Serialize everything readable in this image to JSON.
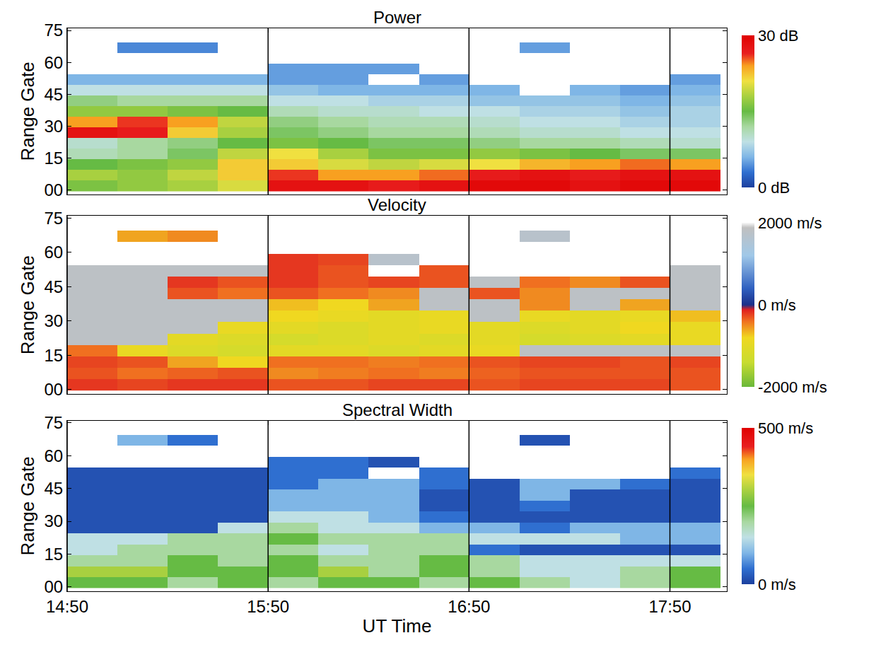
{
  "chart_data": [
    {
      "type": "heatmap",
      "title": "Power",
      "ylabel": "Range Gate",
      "grid": "x",
      "tick_labels": "y",
      "x": [
        897.5,
        912.5,
        927.5,
        942.5,
        957.5,
        972.5,
        987.5,
        1002.5,
        1017.5,
        1032.5,
        1047.5,
        1062.5,
        1077.5
      ],
      "y": [
        2,
        7,
        12,
        17,
        22,
        27,
        32,
        37,
        42,
        47,
        52,
        57,
        62,
        67,
        72
      ],
      "xlim": [
        890,
        1087
      ],
      "xticks": [
        {
          "value": 890,
          "label": "14:50"
        },
        {
          "value": 950,
          "label": "15:50"
        },
        {
          "value": 1010,
          "label": "16:50"
        },
        {
          "value": 1070,
          "label": "17:50"
        }
      ],
      "ylim": [
        -2,
        76
      ],
      "yticks": [
        {
          "value": 0,
          "label": "00"
        },
        15,
        30,
        45,
        60,
        75
      ],
      "zlim": [
        0,
        30
      ],
      "zticks": [
        {
          "value": 0,
          "label": "0 dB"
        },
        {
          "value": 30,
          "label": "30 dB"
        }
      ],
      "z": [
        [
          16,
          17,
          18,
          20,
          28,
          28,
          27,
          28,
          29,
          29,
          28,
          29,
          29
        ],
        [
          18,
          17,
          19,
          22,
          26,
          24,
          24,
          25,
          27,
          28,
          27,
          28,
          28
        ],
        [
          15,
          16,
          17,
          22,
          22,
          20,
          19,
          20,
          21,
          23,
          24,
          25,
          24
        ],
        [
          11,
          12,
          14,
          19,
          21,
          18,
          16,
          16,
          17,
          16,
          15,
          14,
          14
        ],
        [
          10,
          12,
          13,
          15,
          16,
          15,
          14,
          14,
          13,
          12,
          12,
          11,
          10
        ],
        [
          28,
          27,
          22,
          18,
          14,
          13,
          12,
          12,
          11,
          10,
          10,
          9,
          9
        ],
        [
          24,
          26,
          24,
          19,
          13,
          12,
          11,
          11,
          10,
          9,
          9,
          8,
          8
        ],
        [
          17,
          17,
          16,
          15,
          11,
          10,
          10,
          9,
          9,
          8,
          8,
          7,
          8
        ],
        [
          13,
          12,
          12,
          12,
          9,
          9,
          8,
          8,
          7,
          7,
          7,
          6,
          7
        ],
        [
          9,
          9,
          9,
          9,
          7,
          6,
          6,
          6,
          6,
          null,
          6,
          5,
          6
        ],
        [
          6,
          6,
          6,
          6,
          5,
          5,
          null,
          5,
          null,
          null,
          null,
          null,
          5
        ],
        [
          null,
          null,
          null,
          null,
          5,
          5,
          5,
          null,
          null,
          null,
          null,
          null,
          null
        ],
        [
          null,
          null,
          null,
          null,
          null,
          null,
          null,
          null,
          null,
          null,
          null,
          null,
          null
        ],
        [
          null,
          4,
          4,
          null,
          null,
          null,
          null,
          null,
          null,
          5,
          null,
          null,
          null
        ],
        [
          null,
          null,
          null,
          null,
          null,
          null,
          null,
          null,
          null,
          null,
          null,
          null,
          null
        ]
      ]
    },
    {
      "type": "heatmap",
      "title": "Velocity",
      "ylabel": "Range Gate",
      "grid": "x",
      "tick_labels": "y",
      "x": [
        897.5,
        912.5,
        927.5,
        942.5,
        957.5,
        972.5,
        987.5,
        1002.5,
        1017.5,
        1032.5,
        1047.5,
        1062.5,
        1077.5
      ],
      "y": [
        2,
        7,
        12,
        17,
        22,
        27,
        32,
        37,
        42,
        47,
        52,
        57,
        62,
        67,
        72
      ],
      "xlim": [
        890,
        1087
      ],
      "xticks": [
        {
          "value": 890,
          "label": "14:50"
        },
        {
          "value": 950,
          "label": "15:50"
        },
        {
          "value": 1010,
          "label": "16:50"
        },
        {
          "value": 1070,
          "label": "17:50"
        }
      ],
      "ylim": [
        -2,
        76
      ],
      "yticks": [
        {
          "value": 0,
          "label": "00"
        },
        15,
        30,
        45,
        60,
        75
      ],
      "zlim": [
        -2000,
        2000
      ],
      "zticks": [
        {
          "value": -2000,
          "label": "-2000 m/s"
        },
        {
          "value": 0,
          "label": "0 m/s"
        },
        {
          "value": 2000,
          "label": "2000 m/s"
        }
      ],
      "z": [
        [
          -200,
          -250,
          -200,
          -200,
          -300,
          -300,
          -250,
          -250,
          -300,
          -250,
          -250,
          -250,
          -300
        ],
        [
          -300,
          -400,
          -350,
          -300,
          -500,
          -450,
          -400,
          -450,
          -350,
          -300,
          -300,
          -300,
          -300
        ],
        [
          -250,
          -300,
          -600,
          -800,
          -400,
          -400,
          -450,
          -400,
          -300,
          -250,
          -250,
          -300,
          -250
        ],
        [
          -400,
          -900,
          -1100,
          -1200,
          -1000,
          -1000,
          -1100,
          -1000,
          -900,
          1800,
          1800,
          1800,
          1800
        ],
        [
          1800,
          1800,
          -1000,
          -1100,
          -1200,
          -1100,
          -1000,
          -1100,
          -1000,
          -1200,
          -1100,
          -1000,
          -900
        ],
        [
          1800,
          1800,
          1800,
          -900,
          -1000,
          -1100,
          -1000,
          -900,
          -1000,
          -1100,
          -1000,
          -800,
          -900
        ],
        [
          1800,
          1800,
          1800,
          1800,
          -800,
          -900,
          -1000,
          -900,
          1800,
          -900,
          -1000,
          -900,
          -700
        ],
        [
          1800,
          1800,
          1800,
          1800,
          -700,
          -800,
          -600,
          1800,
          1800,
          -500,
          1800,
          -600,
          1800
        ],
        [
          1800,
          1800,
          -300,
          -400,
          -300,
          -400,
          -500,
          1800,
          -300,
          -500,
          1800,
          1800,
          1800
        ],
        [
          1800,
          1800,
          -200,
          -300,
          -200,
          -300,
          -250,
          -300,
          1800,
          -400,
          -500,
          -300,
          1800
        ],
        [
          1800,
          1800,
          1800,
          1800,
          -200,
          -300,
          null,
          -300,
          null,
          null,
          null,
          null,
          1800
        ],
        [
          null,
          null,
          null,
          null,
          -200,
          -250,
          1700,
          null,
          null,
          null,
          null,
          null,
          null
        ],
        [
          null,
          null,
          null,
          null,
          null,
          null,
          null,
          null,
          null,
          null,
          null,
          null,
          null
        ],
        [
          null,
          -600,
          -500,
          null,
          null,
          null,
          null,
          null,
          null,
          1700,
          null,
          null,
          null
        ],
        [
          null,
          null,
          null,
          null,
          null,
          null,
          null,
          null,
          null,
          null,
          null,
          null,
          null
        ]
      ]
    },
    {
      "type": "heatmap",
      "title": "Spectral Width",
      "ylabel": "Range Gate",
      "xlabel": "UT Time",
      "grid": "x",
      "x": [
        897.5,
        912.5,
        927.5,
        942.5,
        957.5,
        972.5,
        987.5,
        1002.5,
        1017.5,
        1032.5,
        1047.5,
        1062.5,
        1077.5
      ],
      "y": [
        2,
        7,
        12,
        17,
        22,
        27,
        32,
        37,
        42,
        47,
        52,
        57,
        62,
        67,
        72
      ],
      "xlim": [
        890,
        1087
      ],
      "xticks": [
        {
          "value": 890,
          "label": "14:50"
        },
        {
          "value": 950,
          "label": "15:50"
        },
        {
          "value": 1010,
          "label": "16:50"
        },
        {
          "value": 1070,
          "label": "17:50"
        }
      ],
      "ylim": [
        -2,
        76
      ],
      "yticks": [
        {
          "value": 0,
          "label": "00"
        },
        15,
        30,
        45,
        60,
        75
      ],
      "zlim": [
        0,
        500
      ],
      "zticks": [
        {
          "value": 0,
          "label": "0 m/s"
        },
        {
          "value": 500,
          "label": "500 m/s"
        }
      ],
      "z": [
        [
          250,
          250,
          200,
          250,
          200,
          250,
          250,
          200,
          250,
          200,
          150,
          200,
          250
        ],
        [
          300,
          300,
          250,
          250,
          250,
          300,
          200,
          250,
          200,
          150,
          150,
          200,
          250
        ],
        [
          200,
          200,
          250,
          200,
          250,
          200,
          200,
          250,
          200,
          150,
          150,
          150,
          150
        ],
        [
          150,
          200,
          200,
          200,
          200,
          150,
          200,
          200,
          50,
          20,
          20,
          20,
          20
        ],
        [
          150,
          150,
          200,
          200,
          250,
          200,
          200,
          200,
          150,
          150,
          150,
          100,
          100
        ],
        [
          20,
          20,
          20,
          150,
          200,
          150,
          150,
          100,
          100,
          50,
          100,
          100,
          100
        ],
        [
          20,
          20,
          20,
          20,
          150,
          150,
          100,
          50,
          20,
          20,
          20,
          20,
          20
        ],
        [
          20,
          20,
          20,
          20,
          100,
          100,
          100,
          20,
          20,
          50,
          20,
          20,
          20
        ],
        [
          20,
          20,
          20,
          20,
          100,
          100,
          100,
          20,
          20,
          100,
          20,
          20,
          20
        ],
        [
          20,
          20,
          20,
          20,
          50,
          100,
          100,
          50,
          20,
          100,
          100,
          50,
          20
        ],
        [
          20,
          20,
          20,
          20,
          50,
          50,
          null,
          50,
          null,
          null,
          null,
          null,
          50
        ],
        [
          null,
          null,
          null,
          null,
          50,
          50,
          20,
          null,
          null,
          null,
          null,
          null,
          null
        ],
        [
          null,
          null,
          null,
          null,
          null,
          null,
          null,
          null,
          null,
          null,
          null,
          null,
          null
        ],
        [
          null,
          100,
          50,
          null,
          null,
          null,
          null,
          null,
          null,
          20,
          null,
          null,
          null
        ],
        [
          null,
          null,
          null,
          null,
          null,
          null,
          null,
          null,
          null,
          null,
          null,
          null,
          null
        ]
      ]
    }
  ]
}
